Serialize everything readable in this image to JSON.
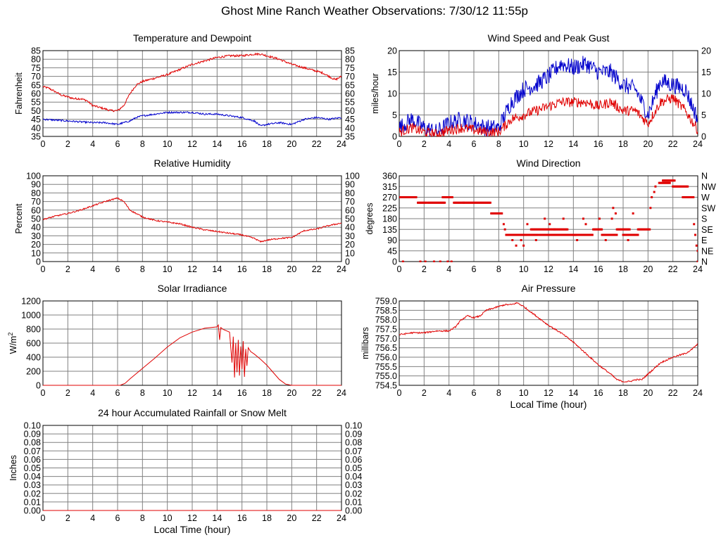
{
  "page": {
    "title": "Ghost Mine Ranch Weather Observations: 7/30/12 11:55p"
  },
  "colors": {
    "grid": "#808080",
    "red": "#e00000",
    "blue": "#0000cc"
  },
  "chart_data": [
    {
      "id": "temp",
      "type": "line",
      "title": "Temperature and Dewpoint",
      "ylabel": "Fahrenheit",
      "xlabel": "",
      "xlim": [
        0,
        24
      ],
      "ylim": [
        35,
        85
      ],
      "xticks": [
        0,
        2,
        4,
        6,
        8,
        10,
        12,
        14,
        16,
        18,
        20,
        22,
        24
      ],
      "yticks": [
        "35",
        "40",
        "45",
        "50",
        "55",
        "60",
        "65",
        "70",
        "75",
        "80",
        "85"
      ],
      "right_axis": true,
      "grid": true,
      "series": [
        {
          "color": "red",
          "noise": 0.6,
          "x": [
            0,
            0.5,
            1,
            1.5,
            2,
            2.5,
            3,
            3.5,
            4,
            4.5,
            5,
            5.5,
            6,
            6.5,
            7,
            7.5,
            8,
            9,
            10,
            11,
            12,
            13,
            14,
            15,
            16,
            17,
            17.5,
            18,
            19,
            20,
            21,
            22,
            22.5,
            23,
            23.5,
            24
          ],
          "y": [
            64,
            63,
            61,
            59,
            58,
            57,
            57,
            56,
            53,
            52,
            51,
            50,
            50,
            53,
            60,
            65,
            67,
            69,
            71,
            74,
            77,
            79,
            81,
            82,
            82,
            83,
            83,
            82,
            80,
            77,
            75,
            73,
            72,
            70,
            68,
            70
          ]
        },
        {
          "color": "blue",
          "noise": 0.5,
          "x": [
            0,
            2,
            4,
            5,
            6,
            7,
            7.5,
            8,
            9,
            10,
            11,
            12,
            13,
            14,
            15,
            16,
            16.5,
            17,
            17.5,
            18,
            19,
            20,
            21,
            22,
            23,
            24
          ],
          "y": [
            45,
            44,
            43,
            43,
            42,
            44,
            46,
            47,
            48,
            49,
            49,
            49,
            48,
            48,
            47,
            46,
            45,
            44,
            41,
            42,
            43,
            42,
            45,
            46,
            45,
            46
          ]
        }
      ]
    },
    {
      "id": "wind",
      "type": "line",
      "title": "Wind Speed and Peak Gust",
      "ylabel": "miles/hour",
      "xlabel": "",
      "xlim": [
        0,
        24
      ],
      "ylim": [
        0,
        20
      ],
      "xticks": [
        0,
        2,
        4,
        6,
        8,
        10,
        12,
        14,
        16,
        18,
        20,
        22,
        24
      ],
      "yticks": [
        "0",
        "5",
        "10",
        "15",
        "20"
      ],
      "right_axis": true,
      "grid": true,
      "series": [
        {
          "color": "blue",
          "noise": 2.0,
          "x": [
            0,
            1,
            2,
            3,
            4,
            5,
            6,
            7,
            8,
            9,
            10,
            11,
            12,
            13,
            14,
            15,
            16,
            17,
            18,
            19,
            20,
            21,
            22,
            23,
            24
          ],
          "y": [
            2,
            4,
            2,
            1,
            3,
            4,
            3,
            2,
            2,
            8,
            11,
            12,
            14,
            17,
            16,
            17,
            15,
            15,
            12,
            11,
            5,
            13,
            12,
            11,
            4
          ]
        },
        {
          "color": "red",
          "noise": 1.2,
          "x": [
            0,
            1,
            2,
            3,
            4,
            5,
            6,
            7,
            8,
            9,
            10,
            11,
            12,
            13,
            14,
            15,
            16,
            17,
            18,
            19,
            20,
            21,
            22,
            23,
            24
          ],
          "y": [
            1,
            2,
            1,
            0.5,
            1.5,
            2,
            1.5,
            1,
            1,
            4,
            5,
            6,
            7,
            8,
            8,
            8,
            7,
            8,
            6,
            6,
            3,
            8,
            9,
            6,
            1.5
          ]
        }
      ]
    },
    {
      "id": "rh",
      "type": "line",
      "title": "Relative Humidity",
      "ylabel": "Percent",
      "xlabel": "",
      "xlim": [
        0,
        24
      ],
      "ylim": [
        0,
        100
      ],
      "xticks": [
        0,
        2,
        4,
        6,
        8,
        10,
        12,
        14,
        16,
        18,
        20,
        22,
        24
      ],
      "yticks": [
        "0",
        "10",
        "20",
        "30",
        "40",
        "50",
        "60",
        "70",
        "80",
        "90",
        "100"
      ],
      "right_axis": true,
      "grid": true,
      "series": [
        {
          "color": "red",
          "noise": 0.8,
          "x": [
            0,
            1,
            2,
            3,
            4,
            5,
            5.5,
            6,
            6.5,
            7,
            8,
            9,
            10,
            11,
            12,
            13,
            14,
            15,
            16,
            17,
            17.5,
            18,
            19,
            20,
            21,
            22,
            23,
            24
          ],
          "y": [
            49,
            53,
            56,
            60,
            65,
            70,
            72,
            74,
            70,
            60,
            52,
            48,
            46,
            44,
            40,
            37,
            35,
            33,
            31,
            27,
            23,
            25,
            27,
            28,
            36,
            38,
            42,
            45
          ]
        }
      ]
    },
    {
      "id": "wdir",
      "type": "scatter",
      "title": "Wind Direction",
      "ylabel": "degrees",
      "xlabel": "",
      "xlim": [
        0,
        24
      ],
      "ylim": [
        0,
        360
      ],
      "xticks": [
        0,
        2,
        4,
        6,
        8,
        10,
        12,
        14,
        16,
        18,
        20,
        22,
        24
      ],
      "yticks": [
        "0",
        "45",
        "90",
        "135",
        "180",
        "225",
        "270",
        "315",
        "360"
      ],
      "right_ticklabels": [
        "N",
        "NE",
        "E",
        "SE",
        "S",
        "SW",
        "W",
        "NW",
        "N"
      ],
      "right_axis": true,
      "grid": true,
      "series": [
        {
          "color": "red",
          "segments": [
            [
              0,
              1.4,
              270
            ],
            [
              1.5,
              2.2,
              247
            ],
            [
              2.3,
              3.7,
              247
            ],
            [
              3.5,
              4.3,
              270
            ],
            [
              4.4,
              5.2,
              247
            ],
            [
              5.2,
              7.4,
              247
            ],
            [
              7.4,
              8.3,
              202
            ],
            [
              8.6,
              11.2,
              112
            ],
            [
              10.6,
              12.5,
              135
            ],
            [
              11.3,
              14.2,
              112
            ],
            [
              12.5,
              13.6,
              135
            ],
            [
              14.0,
              15.6,
              112
            ],
            [
              15.6,
              16.3,
              135
            ],
            [
              16.3,
              17.5,
              112
            ],
            [
              17.5,
              18.6,
              135
            ],
            [
              18.0,
              19.2,
              112
            ],
            [
              19.2,
              20.2,
              135
            ],
            [
              20.9,
              21.8,
              330
            ],
            [
              21.2,
              22.2,
              340
            ],
            [
              22.0,
              23.2,
              315
            ],
            [
              22.8,
              23.7,
              270
            ]
          ],
          "points": [
            [
              0.3,
              0
            ],
            [
              1.7,
              0
            ],
            [
              2.1,
              0
            ],
            [
              2.8,
              0
            ],
            [
              3.3,
              0
            ],
            [
              3.9,
              0
            ],
            [
              4.2,
              0
            ],
            [
              8.4,
              157
            ],
            [
              8.5,
              135
            ],
            [
              9.1,
              90
            ],
            [
              9.4,
              67
            ],
            [
              10.0,
              67
            ],
            [
              9.8,
              90
            ],
            [
              10.3,
              157
            ],
            [
              11.0,
              90
            ],
            [
              11.7,
              180
            ],
            [
              12.1,
              157
            ],
            [
              13.2,
              180
            ],
            [
              14.3,
              90
            ],
            [
              14.8,
              180
            ],
            [
              15.0,
              157
            ],
            [
              16.1,
              180
            ],
            [
              16.6,
              90
            ],
            [
              17.1,
              180
            ],
            [
              17.2,
              225
            ],
            [
              17.4,
              202
            ],
            [
              18.4,
              90
            ],
            [
              18.8,
              202
            ],
            [
              20.2,
              225
            ],
            [
              20.3,
              270
            ],
            [
              20.5,
              292
            ],
            [
              20.6,
              315
            ],
            [
              23.7,
              157
            ],
            [
              23.8,
              112
            ],
            [
              23.9,
              67
            ],
            [
              24.0,
              45
            ],
            [
              24.0,
              0
            ]
          ]
        }
      ]
    },
    {
      "id": "solar",
      "type": "line",
      "title": "Solar Irradiance",
      "ylabel": "W/m",
      "ylabel_sup": "2",
      "xlabel": "",
      "xlim": [
        0,
        24
      ],
      "ylim": [
        0,
        1300
      ],
      "xticks": [
        0,
        2,
        4,
        6,
        8,
        10,
        12,
        14,
        16,
        18,
        20,
        22,
        24
      ],
      "yticks": [
        "0",
        "200",
        "400",
        "600",
        "800",
        "1000",
        "1200"
      ],
      "right_axis": false,
      "grid": true,
      "series": [
        {
          "color": "red",
          "noise": 0,
          "x": [
            0,
            6.2,
            6.6,
            7,
            8,
            9,
            10,
            11,
            12,
            13,
            14,
            14.1,
            14.2,
            14.3,
            14.5,
            15,
            15.2,
            15.3,
            15.4,
            15.5,
            15.6,
            15.7,
            15.8,
            15.9,
            16.0,
            16.1,
            16.2,
            16.3,
            16.4,
            16.5,
            16.7,
            17,
            17.5,
            18,
            18.5,
            19,
            19.5,
            20,
            24
          ],
          "y": [
            0,
            0,
            30,
            100,
            260,
            420,
            590,
            730,
            820,
            880,
            900,
            930,
            700,
            890,
            860,
            820,
            350,
            750,
            120,
            650,
            200,
            700,
            150,
            600,
            250,
            680,
            130,
            560,
            300,
            580,
            520,
            480,
            400,
            310,
            200,
            90,
            20,
            0,
            0
          ]
        }
      ]
    },
    {
      "id": "press",
      "type": "line",
      "title": "Air Pressure",
      "ylabel": "millibars",
      "xlabel": "Local Time (hour)",
      "xlim": [
        0,
        24
      ],
      "ylim": [
        754.5,
        759.0
      ],
      "xticks": [
        0,
        2,
        4,
        6,
        8,
        10,
        12,
        14,
        16,
        18,
        20,
        22,
        24
      ],
      "yticks": [
        "754.5",
        "755.0",
        "755.5",
        "756.0",
        "756.5",
        "757.0",
        "757.5",
        "758.0",
        "758.5",
        "759.0"
      ],
      "right_axis": false,
      "grid": true,
      "series": [
        {
          "color": "red",
          "noise": 0.04,
          "x": [
            0,
            1,
            2,
            3,
            4,
            4.5,
            5,
            5.5,
            6,
            6.5,
            7,
            7.5,
            8,
            8.5,
            9,
            9.5,
            10,
            11,
            12,
            13,
            14,
            15,
            16,
            17,
            17.5,
            18,
            18.5,
            19,
            19.5,
            20,
            20.5,
            21,
            22,
            23,
            23.5,
            24
          ],
          "y": [
            757.2,
            757.3,
            757.3,
            757.4,
            757.4,
            757.6,
            758.0,
            758.2,
            758.1,
            758.2,
            758.5,
            758.6,
            758.7,
            758.8,
            758.8,
            758.9,
            758.7,
            758.2,
            757.7,
            757.3,
            756.8,
            756.2,
            755.6,
            755.1,
            754.8,
            754.7,
            754.7,
            754.8,
            754.8,
            755.1,
            755.4,
            755.7,
            756.0,
            756.2,
            756.4,
            756.7
          ]
        }
      ]
    },
    {
      "id": "rain",
      "type": "line",
      "title": "24 hour Accumulated Rainfall or Snow Melt",
      "ylabel": "Inches",
      "xlabel": "Local Time (hour)",
      "xlim": [
        0,
        24
      ],
      "ylim": [
        0,
        0.1
      ],
      "xticks": [
        0,
        2,
        4,
        6,
        8,
        10,
        12,
        14,
        16,
        18,
        20,
        22,
        24
      ],
      "yticks": [
        "0.00",
        "0.01",
        "0.02",
        "0.03",
        "0.04",
        "0.05",
        "0.06",
        "0.07",
        "0.08",
        "0.09",
        "0.10"
      ],
      "right_axis": true,
      "grid": true,
      "series": [
        {
          "color": "red",
          "noise": 0,
          "x": [
            0,
            24
          ],
          "y": [
            0,
            0
          ]
        }
      ]
    }
  ]
}
